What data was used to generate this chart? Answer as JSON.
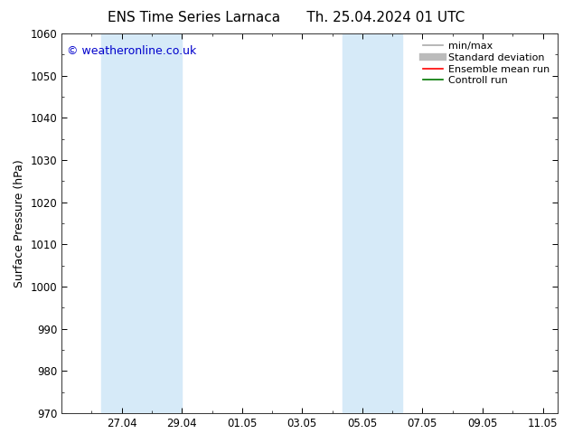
{
  "title_left": "ENS Time Series Larnaca",
  "title_right": "Th. 25.04.2024 01 UTC",
  "ylabel": "Surface Pressure (hPa)",
  "watermark": "© weatheronline.co.uk",
  "ylim": [
    970,
    1060
  ],
  "yticks": [
    970,
    980,
    990,
    1000,
    1010,
    1020,
    1030,
    1040,
    1050,
    1060
  ],
  "xlim_start": 0.0,
  "xlim_end": 16.5,
  "xtick_labels": [
    "27.04",
    "29.04",
    "01.05",
    "03.05",
    "05.05",
    "07.05",
    "09.05",
    "11.05"
  ],
  "xtick_positions": [
    2,
    4,
    6,
    8,
    10,
    12,
    14,
    16
  ],
  "shaded_bands": [
    {
      "xmin": 1.33,
      "xmax": 4.0
    },
    {
      "xmin": 9.33,
      "xmax": 11.33
    }
  ],
  "shade_color": "#d6eaf8",
  "bg_color": "#ffffff",
  "plot_bg_color": "#ffffff",
  "legend_items": [
    {
      "label": "min/max",
      "color": "#aaaaaa",
      "lw": 1.2
    },
    {
      "label": "Standard deviation",
      "color": "#bbbbbb",
      "lw": 6
    },
    {
      "label": "Ensemble mean run",
      "color": "#ff0000",
      "lw": 1.2
    },
    {
      "label": "Controll run",
      "color": "#007700",
      "lw": 1.2
    }
  ],
  "watermark_color": "#0000cc",
  "title_fontsize": 11,
  "tick_fontsize": 8.5,
  "ylabel_fontsize": 9,
  "watermark_fontsize": 9,
  "legend_fontsize": 8
}
